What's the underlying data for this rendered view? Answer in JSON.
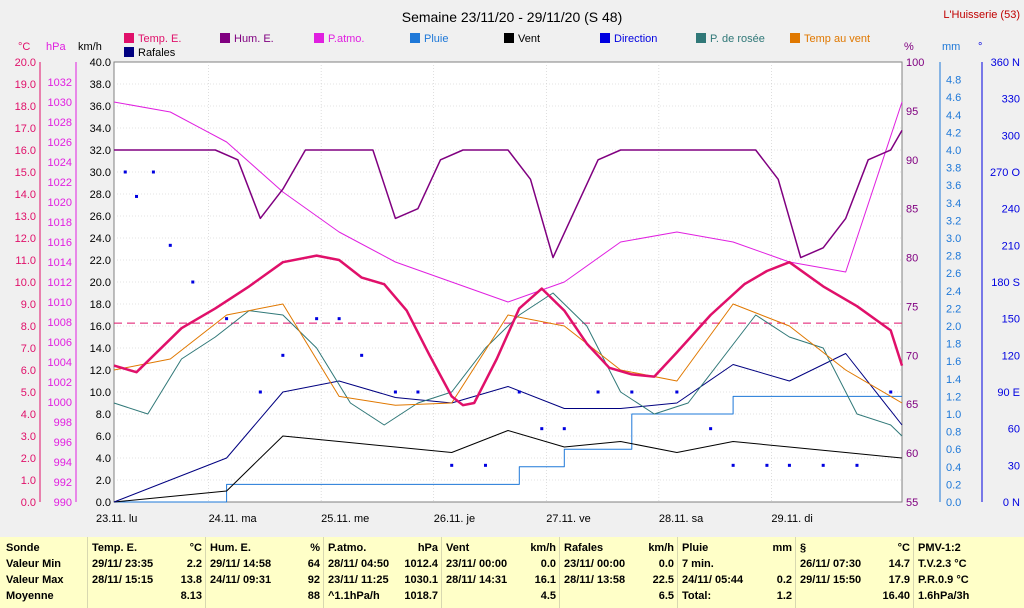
{
  "chart_data": {
    "type": "line",
    "title": "Semaine 23/11/20 - 29/11/20 (S 48)",
    "station": "L'Huisserie (53)",
    "legend": [
      {
        "label": "Temp. E.",
        "color": "#e0106a"
      },
      {
        "label": "Hum. E.",
        "color": "#800080"
      },
      {
        "label": "P.atmo.",
        "color": "#e020e0"
      },
      {
        "label": "Pluie",
        "color": "#1e78d8"
      },
      {
        "label": "Vent",
        "color": "#000000"
      },
      {
        "label": "Direction",
        "color": "#0000e0"
      },
      {
        "label": "P. de rosée",
        "color": "#307878"
      },
      {
        "label": "Temp au vent",
        "color": "#e07800"
      },
      {
        "label": "Rafales",
        "color": "#000080"
      }
    ],
    "axes": {
      "temp": {
        "unit": "°C",
        "min": 0,
        "max": 20,
        "ticks": [
          "20.0",
          "19.0",
          "18.0",
          "17.0",
          "16.0",
          "15.0",
          "14.0",
          "13.0",
          "12.0",
          "11.0",
          "10.0",
          "9.0",
          "8.0",
          "7.0",
          "6.0",
          "5.0",
          "4.0",
          "3.0",
          "2.0",
          "1.0",
          "0.0"
        ]
      },
      "press": {
        "unit": "hPa",
        "min": 990,
        "max": 1034,
        "ticks": [
          "1032",
          "1030",
          "1028",
          "1026",
          "1024",
          "1022",
          "1020",
          "1018",
          "1016",
          "1014",
          "1012",
          "1010",
          "1008",
          "1006",
          "1004",
          "1002",
          "1000",
          "998",
          "996",
          "994",
          "992",
          "990"
        ]
      },
      "wind": {
        "unit": "km/h",
        "min": 0,
        "max": 40,
        "ticks": [
          "40.0",
          "38.0",
          "36.0",
          "34.0",
          "32.0",
          "30.0",
          "28.0",
          "26.0",
          "24.0",
          "22.0",
          "20.0",
          "18.0",
          "16.0",
          "14.0",
          "12.0",
          "10.0",
          "8.0",
          "6.0",
          "4.0",
          "2.0",
          "0.0"
        ]
      },
      "hum": {
        "unit": "%",
        "min": 55,
        "max": 100,
        "ticks": [
          "100",
          "95",
          "90",
          "85",
          "80",
          "75",
          "70",
          "65",
          "60",
          "55"
        ]
      },
      "rain": {
        "unit": "mm",
        "min": 0,
        "max": 5,
        "ticks": [
          "4.8",
          "4.6",
          "4.4",
          "4.2",
          "4.0",
          "3.8",
          "3.6",
          "3.4",
          "3.2",
          "3.0",
          "2.8",
          "2.6",
          "2.4",
          "2.2",
          "2.0",
          "1.8",
          "1.6",
          "1.4",
          "1.2",
          "1.0",
          "0.8",
          "0.6",
          "0.4",
          "0.2",
          "0.0"
        ]
      },
      "dir": {
        "unit": "°",
        "min": 0,
        "max": 360,
        "ticks": [
          "360 N",
          "330",
          "300",
          "270 O",
          "240",
          "210",
          "180 S",
          "150",
          "120",
          "90 E",
          "60",
          "30",
          "0 N"
        ]
      }
    },
    "x_labels": [
      "23.11. lu",
      "24.11. ma",
      "25.11. me",
      "26.11. je",
      "27.11. ve",
      "28.11. sa",
      "29.11. di"
    ],
    "mean_temp": 8.13,
    "series": [
      {
        "name": "Temp. E.",
        "axis": "temp",
        "color": "#e0106a",
        "width": 2.5,
        "t": [
          0,
          0.2,
          0.6,
          0.9,
          1.2,
          1.5,
          1.8,
          2.0,
          2.2,
          2.4,
          2.6,
          2.8,
          3.0,
          3.1,
          3.2,
          3.4,
          3.6,
          3.8,
          4.0,
          4.2,
          4.4,
          4.6,
          4.8,
          5.0,
          5.3,
          5.6,
          5.8,
          6.0,
          6.3,
          6.6,
          6.9,
          7.0
        ],
        "v": [
          6.2,
          5.9,
          7.9,
          8.8,
          9.8,
          10.9,
          11.2,
          11.0,
          10.2,
          9.9,
          8.7,
          6.7,
          4.8,
          4.4,
          4.5,
          6.5,
          8.8,
          9.7,
          8.7,
          7.2,
          6.1,
          5.8,
          5.7,
          6.8,
          8.5,
          9.9,
          10.5,
          10.9,
          9.8,
          8.9,
          7.8,
          6.2
        ]
      },
      {
        "name": "Hum. E.",
        "axis": "hum",
        "color": "#800080",
        "width": 1.5,
        "t": [
          0,
          0.25,
          0.5,
          0.7,
          0.9,
          1.1,
          1.3,
          1.5,
          1.7,
          1.9,
          2.1,
          2.3,
          2.5,
          2.7,
          2.9,
          3.1,
          3.3,
          3.5,
          3.7,
          3.9,
          4.1,
          4.3,
          4.5,
          4.7,
          4.9,
          5.1,
          5.3,
          5.5,
          5.7,
          5.9,
          6.1,
          6.3,
          6.5,
          6.7,
          6.9,
          7.0
        ],
        "v": [
          91,
          91,
          91,
          91,
          91,
          90,
          84,
          87,
          91,
          91,
          91,
          91,
          84,
          85,
          90,
          91,
          91,
          91,
          88,
          80,
          85,
          90,
          91,
          91,
          91,
          91,
          91,
          91,
          91,
          88,
          80,
          81,
          84,
          90,
          91,
          93
        ]
      },
      {
        "name": "P.atmo.",
        "axis": "press",
        "color": "#e020e0",
        "width": 1,
        "t": [
          0,
          0.5,
          1.0,
          1.5,
          2.0,
          2.5,
          3.0,
          3.5,
          4.0,
          4.5,
          5.0,
          5.5,
          6.0,
          6.5,
          7.0
        ],
        "v": [
          1030,
          1029,
          1026,
          1021,
          1017,
          1014,
          1012,
          1010,
          1012,
          1016,
          1017,
          1016,
          1014,
          1013,
          1030
        ]
      },
      {
        "name": "P. de rosée",
        "axis": "temp",
        "color": "#307878",
        "width": 1,
        "t": [
          0,
          0.3,
          0.6,
          0.9,
          1.2,
          1.5,
          1.8,
          2.1,
          2.4,
          2.7,
          3.0,
          3.3,
          3.6,
          3.9,
          4.2,
          4.5,
          4.8,
          5.1,
          5.4,
          5.7,
          6.0,
          6.3,
          6.6,
          6.9,
          7.0
        ],
        "v": [
          4.5,
          4.0,
          6.5,
          7.5,
          8.7,
          8.5,
          7.0,
          4.5,
          3.5,
          4.5,
          5.0,
          7.0,
          8.5,
          9.5,
          8.0,
          5.0,
          4.0,
          4.5,
          6.5,
          8.5,
          7.5,
          7.0,
          4.0,
          3.5,
          3.0
        ]
      },
      {
        "name": "Temp au vent",
        "axis": "temp",
        "color": "#e07800",
        "width": 1,
        "t": [
          0,
          0.5,
          1.0,
          1.5,
          2.0,
          2.5,
          3.0,
          3.5,
          4.0,
          4.5,
          5.0,
          5.5,
          6.0,
          6.5,
          7.0
        ],
        "v": [
          6.0,
          6.5,
          8.5,
          9.0,
          4.8,
          4.4,
          4.5,
          8.5,
          8.0,
          6.0,
          5.5,
          9.0,
          8.0,
          6.0,
          4.5
        ]
      },
      {
        "name": "Vent",
        "axis": "wind",
        "color": "#000000",
        "width": 1,
        "t": [
          0,
          0.5,
          1.0,
          1.5,
          2.0,
          2.5,
          3.0,
          3.5,
          4.0,
          4.5,
          5.0,
          5.5,
          6.0,
          6.5,
          7.0
        ],
        "v": [
          0.0,
          0.5,
          1.0,
          6.0,
          5.5,
          5.0,
          4.5,
          6.5,
          5.0,
          5.5,
          4.5,
          5.5,
          5.0,
          4.5,
          4.0
        ]
      },
      {
        "name": "Rafales",
        "axis": "wind",
        "color": "#000080",
        "width": 1,
        "t": [
          0,
          0.5,
          1.0,
          1.5,
          2.0,
          2.5,
          3.0,
          3.5,
          4.0,
          4.5,
          5.0,
          5.5,
          6.0,
          6.5,
          7.0
        ],
        "v": [
          0.0,
          2.0,
          4.0,
          10.0,
          11.0,
          9.5,
          9.0,
          10.5,
          8.5,
          8.5,
          9.0,
          12.5,
          11.0,
          13.5,
          7.0
        ]
      },
      {
        "name": "Pluie",
        "axis": "rain",
        "color": "#1e78d8",
        "width": 1,
        "step": true,
        "t": [
          0,
          1.0,
          3.0,
          3.6,
          4.0,
          4.6,
          5.5,
          6.0,
          7.0
        ],
        "v": [
          0.0,
          0.2,
          0.2,
          0.4,
          0.6,
          1.0,
          1.2,
          1.2,
          1.2
        ]
      }
    ],
    "direction": {
      "axis": "dir",
      "color": "#0000e0",
      "points": [
        [
          0.1,
          270
        ],
        [
          0.2,
          250
        ],
        [
          0.35,
          270
        ],
        [
          0.5,
          210
        ],
        [
          0.7,
          180
        ],
        [
          1.0,
          150
        ],
        [
          1.3,
          90
        ],
        [
          1.5,
          120
        ],
        [
          1.8,
          150
        ],
        [
          2.0,
          150
        ],
        [
          2.2,
          120
        ],
        [
          2.5,
          90
        ],
        [
          2.7,
          90
        ],
        [
          3.0,
          30
        ],
        [
          3.3,
          30
        ],
        [
          3.6,
          90
        ],
        [
          3.8,
          60
        ],
        [
          4.0,
          60
        ],
        [
          4.3,
          90
        ],
        [
          4.6,
          90
        ],
        [
          5.0,
          90
        ],
        [
          5.3,
          60
        ],
        [
          5.5,
          30
        ],
        [
          5.8,
          30
        ],
        [
          6.0,
          30
        ],
        [
          6.3,
          30
        ],
        [
          6.6,
          30
        ],
        [
          6.9,
          90
        ]
      ]
    }
  },
  "table": {
    "row_labels": [
      "Sonde",
      "Valeur Min",
      "Valeur Max",
      "Moyenne"
    ],
    "columns": [
      {
        "header": "Temp. E.",
        "unit": "°C",
        "rows": [
          [
            "29/11/ 23:35",
            "2.2"
          ],
          [
            "28/11/ 15:15",
            "13.8"
          ],
          [
            "",
            "8.13"
          ]
        ]
      },
      {
        "header": "Hum. E.",
        "unit": "%",
        "rows": [
          [
            "29/11/ 14:58",
            "64"
          ],
          [
            "24/11/ 09:31",
            "92"
          ],
          [
            "",
            "88"
          ]
        ]
      },
      {
        "header": "P.atmo.",
        "unit": "hPa",
        "rows": [
          [
            "28/11/ 04:50",
            "1012.4"
          ],
          [
            "23/11/ 11:25",
            "1030.1"
          ],
          [
            "^1.1hPa/h",
            "1018.7"
          ]
        ]
      },
      {
        "header": "Vent",
        "unit": "km/h",
        "rows": [
          [
            "23/11/ 00:00",
            "0.0"
          ],
          [
            "28/11/ 14:31",
            "16.1"
          ],
          [
            "",
            "4.5"
          ]
        ]
      },
      {
        "header": "Rafales",
        "unit": "km/h",
        "rows": [
          [
            "23/11/ 00:00",
            "0.0"
          ],
          [
            "28/11/ 13:58",
            "22.5"
          ],
          [
            "",
            "6.5"
          ]
        ]
      },
      {
        "header": "Pluie",
        "unit": "mm",
        "rows": [
          [
            "7 min.",
            ""
          ],
          [
            "24/11/ 05:44",
            "0.2"
          ],
          [
            "Total:",
            "1.2"
          ]
        ]
      },
      {
        "header": "§",
        "unit": "°C",
        "rows": [
          [
            "26/11/ 07:30",
            "14.7"
          ],
          [
            "29/11/ 15:50",
            "17.9"
          ],
          [
            "",
            "16.40"
          ]
        ]
      },
      {
        "header": "PMV-1:2",
        "unit": "",
        "rows": [
          [
            "T.V.2.3 °C",
            ""
          ],
          [
            "P.R.0.9 °C",
            ""
          ],
          [
            "1.6hPa/3h",
            ""
          ]
        ]
      }
    ]
  }
}
